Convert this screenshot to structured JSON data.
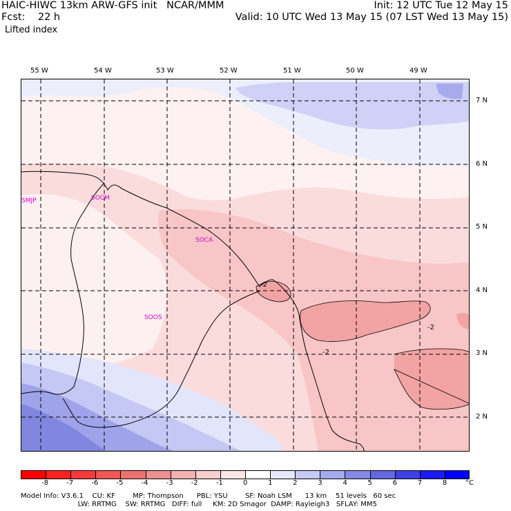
{
  "header": {
    "line1_left": "HAIC-HIWC 13km ARW-GFS init   NCAR/MMM",
    "line1_right": "Init: 12 UTC Tue 12 May 15",
    "line2_left": "Fcst:    22 h",
    "line2_right": "Valid: 10 UTC Wed 13 May 15 (07 LST Wed 13 May 15)",
    "field_name": "Lifted index"
  },
  "map": {
    "longitude_labels": [
      "55 W",
      "54 W",
      "53 W",
      "52 W",
      "51 W",
      "50 W",
      "49 W"
    ],
    "latitude_labels": [
      "7 N",
      "6 N",
      "5 N",
      "4 N",
      "3 N",
      "2 N"
    ],
    "stations": [
      "SMJP",
      "SOCM",
      "SOCA",
      "SOOS"
    ],
    "contour_labels": [
      "-2",
      "-2",
      "-2"
    ],
    "colors": {
      "ocean_blue_light": "#e9ebfb",
      "ocean_blue_mid": "#c9ccf5",
      "ocean_blue_strong": "#9fa4ea",
      "ocean_blue_deep": "#7b80dd",
      "pink_faint": "#fdf1f1",
      "pink_light": "#fbd7d7",
      "pink_mid": "#f6b7b7",
      "pink_strong": "#ee9898"
    }
  },
  "legend": {
    "values": [
      "-8",
      "-7",
      "-6",
      "-5",
      "-4",
      "-3",
      "-2",
      "-1",
      "0",
      "1",
      "2",
      "3",
      "4",
      "5",
      "6",
      "7",
      "8"
    ],
    "unit": "°C",
    "colors": [
      "#ff0000",
      "#ff2020",
      "#f83a3a",
      "#f25656",
      "#ec7272",
      "#ee9090",
      "#f3b1b1",
      "#f8cfcf",
      "#fbe6e6",
      "#ffffff",
      "#e6e8fb",
      "#c6c9f5",
      "#a5a9ee",
      "#8489e7",
      "#6368e0",
      "#3c41e6",
      "#1a1af2",
      "#0000ff"
    ]
  },
  "footer": {
    "line1": "Model Info: V3.6.1    CU: KF        MP: Thompson      PBL: YSU        SF: Noah LSM      13 km    51 levels   60 sec",
    "line2": "                          LW: RRTMG    SW: RRTMG   DIFF: full     KM: 2D Smagor  DAMP: Rayleigh3   SFLAY: MM5"
  }
}
